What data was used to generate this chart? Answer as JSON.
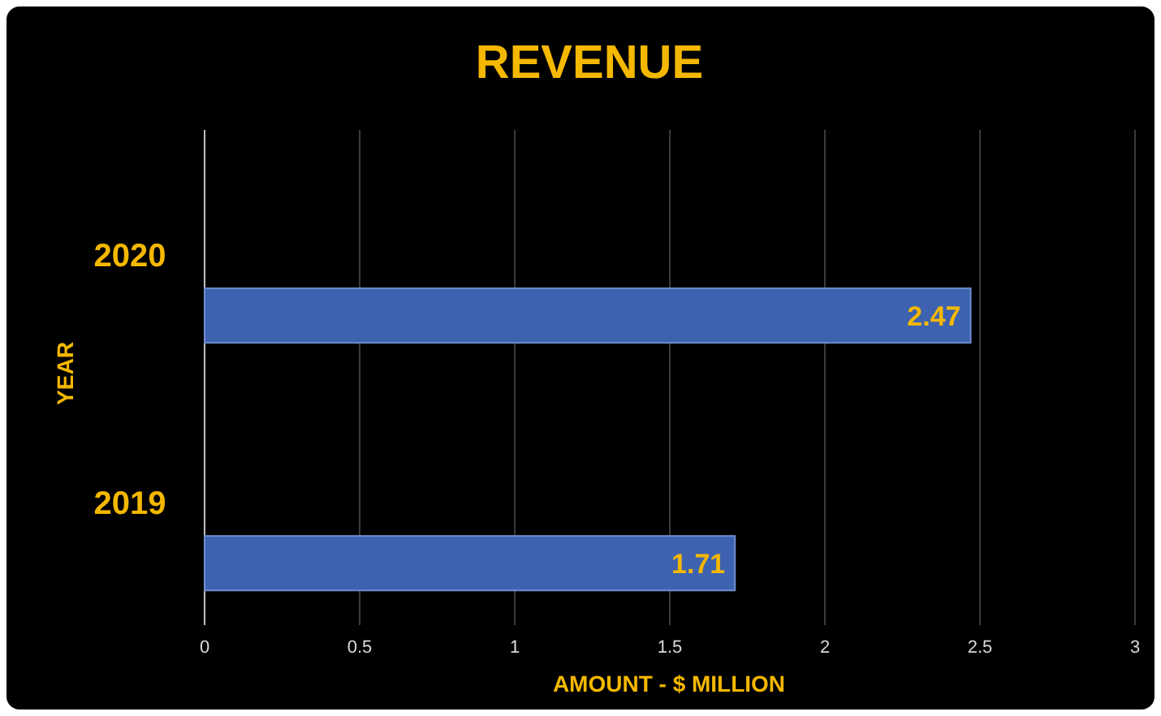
{
  "chart_data": {
    "type": "bar",
    "orientation": "horizontal",
    "title": "REVENUE",
    "xlabel": "AMOUNT - $ MILLION",
    "ylabel": "YEAR",
    "categories": [
      "2020",
      "2019"
    ],
    "values": [
      2.47,
      1.71
    ],
    "color": "#3d62b0",
    "xlim": [
      0,
      3
    ],
    "xticks": [
      0,
      0.5,
      1,
      1.5,
      2,
      2.5,
      3
    ],
    "grid": "x",
    "data_labels": true
  }
}
